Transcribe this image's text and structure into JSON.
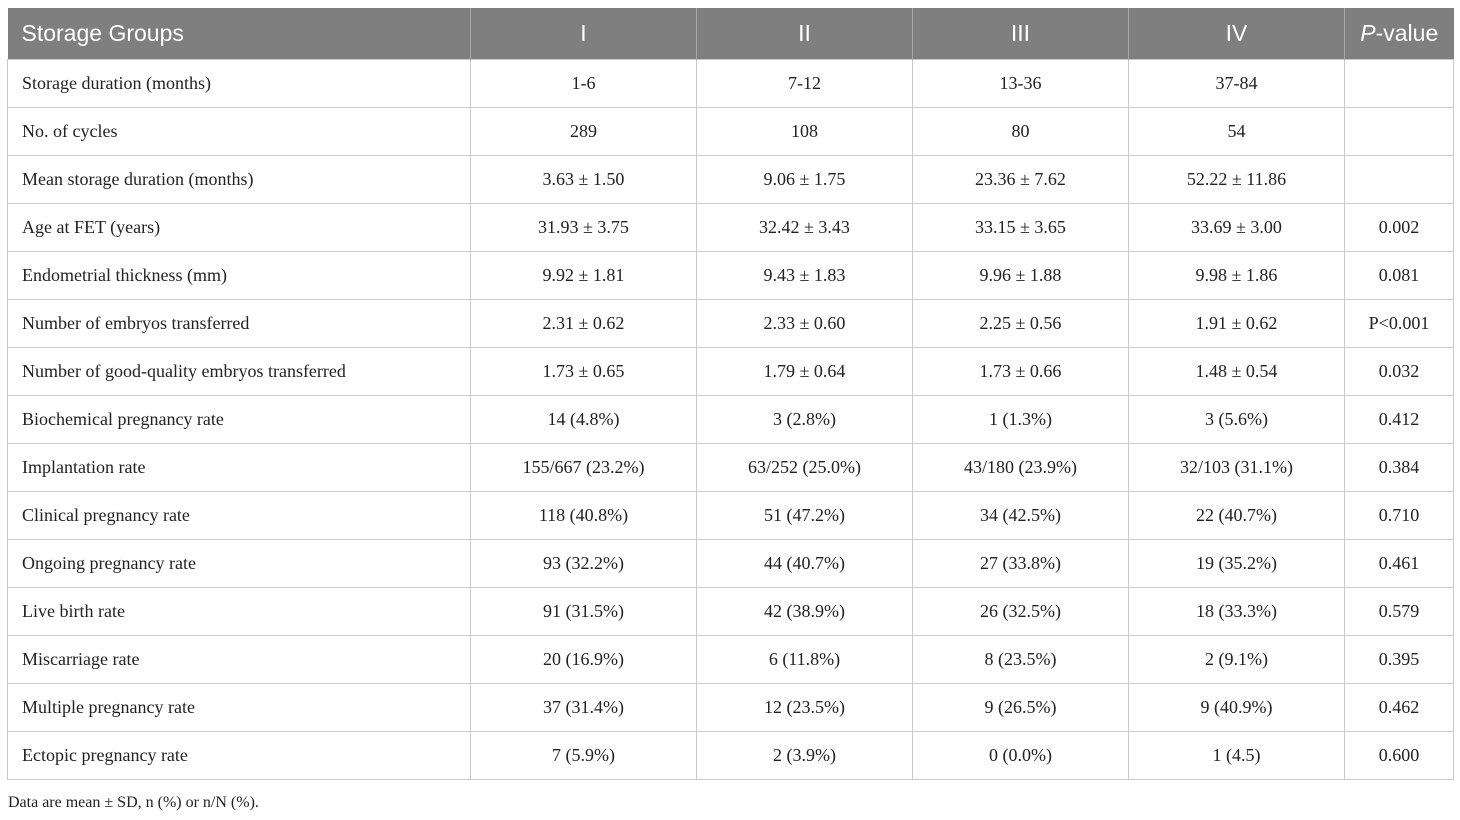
{
  "table": {
    "headers": [
      "Storage Groups",
      "I",
      "II",
      "III",
      "IV"
    ],
    "pvalue_header": {
      "italic": "P",
      "rest": "-value"
    },
    "rows": [
      [
        "Storage duration (months)",
        "1-6",
        "7-12",
        "13-36",
        "37-84",
        ""
      ],
      [
        "No. of cycles",
        "289",
        "108",
        "80",
        "54",
        ""
      ],
      [
        "Mean storage duration (months)",
        "3.63 ± 1.50",
        "9.06 ± 1.75",
        "23.36 ± 7.62",
        "52.22 ± 11.86",
        ""
      ],
      [
        "Age at FET (years)",
        "31.93 ± 3.75",
        "32.42 ± 3.43",
        "33.15 ± 3.65",
        "33.69 ± 3.00",
        "0.002"
      ],
      [
        "Endometrial thickness (mm)",
        "9.92 ± 1.81",
        "9.43 ± 1.83",
        "9.96 ± 1.88",
        "9.98 ± 1.86",
        "0.081"
      ],
      [
        "Number of embryos transferred",
        "2.31 ± 0.62",
        "2.33 ± 0.60",
        "2.25 ± 0.56",
        "1.91 ± 0.62",
        "P<0.001"
      ],
      [
        "Number of good-quality embryos transferred",
        "1.73 ± 0.65",
        "1.79 ± 0.64",
        "1.73 ± 0.66",
        "1.48 ± 0.54",
        "0.032"
      ],
      [
        "Biochemical pregnancy rate",
        "14 (4.8%)",
        "3 (2.8%)",
        "1 (1.3%)",
        "3 (5.6%)",
        "0.412"
      ],
      [
        "Implantation rate",
        "155/667 (23.2%)",
        "63/252 (25.0%)",
        "43/180 (23.9%)",
        "32/103 (31.1%)",
        "0.384"
      ],
      [
        "Clinical pregnancy rate",
        "118 (40.8%)",
        "51 (47.2%)",
        "34 (42.5%)",
        "22 (40.7%)",
        "0.710"
      ],
      [
        "Ongoing pregnancy rate",
        "93 (32.2%)",
        "44 (40.7%)",
        "27 (33.8%)",
        "19 (35.2%)",
        "0.461"
      ],
      [
        "Live birth rate",
        "91 (31.5%)",
        "42 (38.9%)",
        "26 (32.5%)",
        "18 (33.3%)",
        "0.579"
      ],
      [
        "Miscarriage rate",
        "20 (16.9%)",
        "6 (11.8%)",
        "8 (23.5%)",
        "2 (9.1%)",
        "0.395"
      ],
      [
        "Multiple pregnancy rate",
        "37 (31.4%)",
        "12 (23.5%)",
        "9 (26.5%)",
        "9 (40.9%)",
        "0.462"
      ],
      [
        "Ectopic pregnancy rate",
        "7 (5.9%)",
        "2 (3.9%)",
        "0 (0.0%)",
        "1 (4.5)",
        "0.600"
      ]
    ]
  },
  "footnote": "Data are mean ± SD, n (%) or n/N (%).",
  "colors": {
    "header_bg": "#7f7f7f",
    "header_text": "#ffffff",
    "grid": "#c9c9c9"
  }
}
